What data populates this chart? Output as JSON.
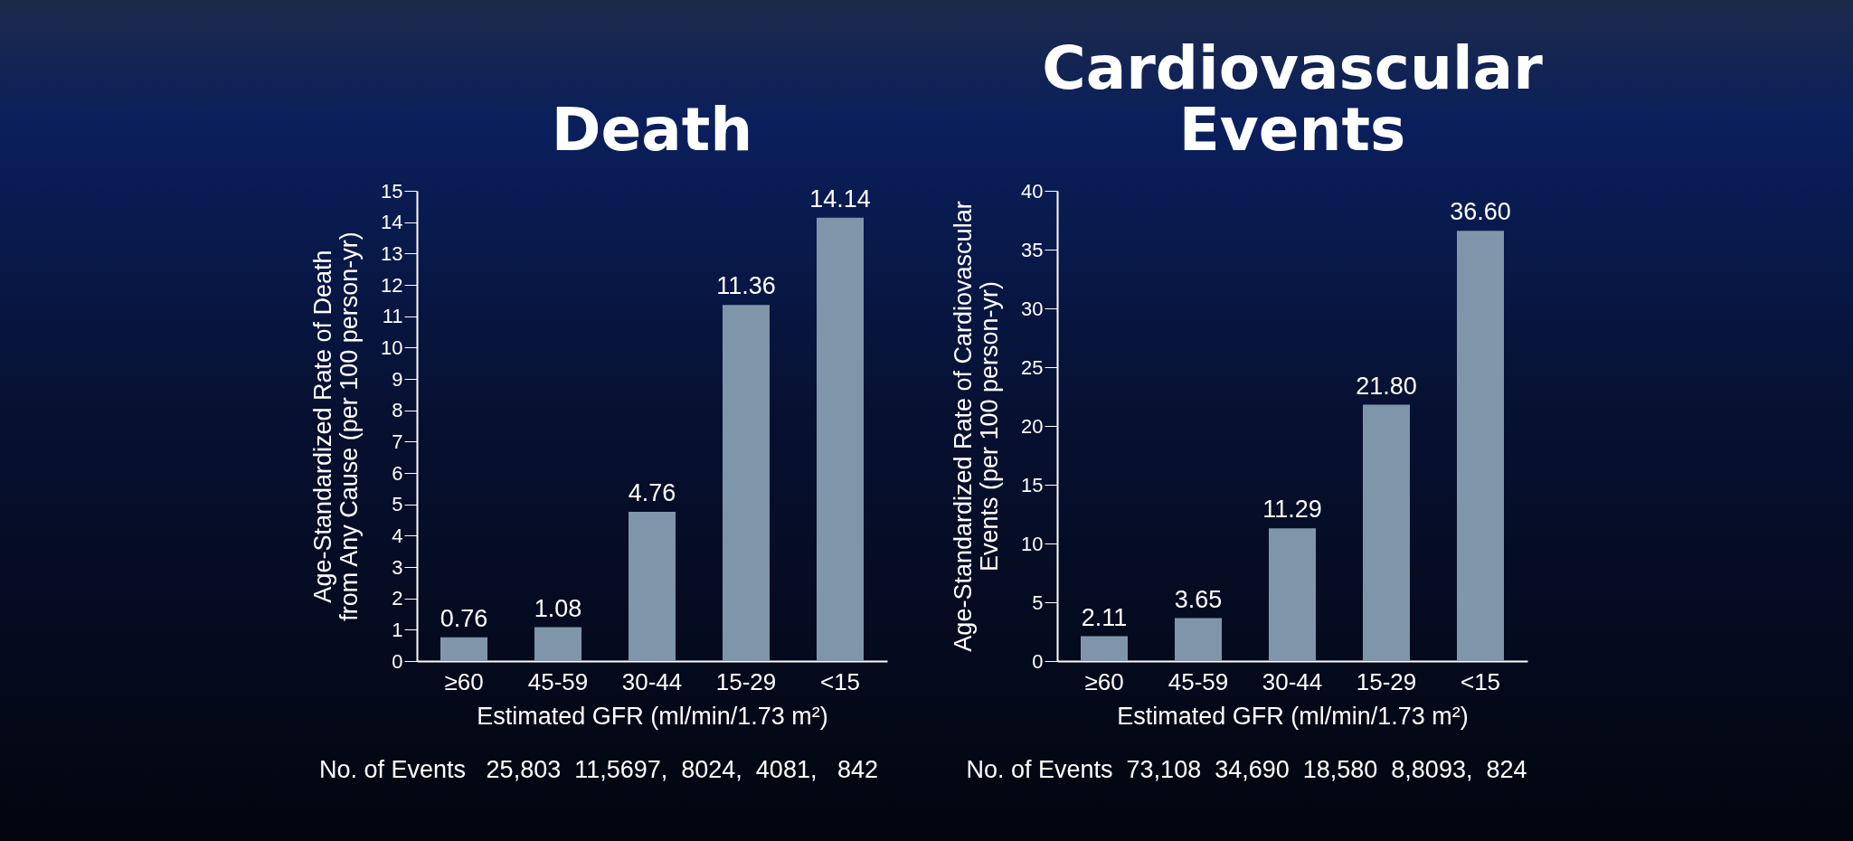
{
  "chart_data": [
    {
      "type": "bar",
      "title": "Death",
      "xlabel": "Estimated GFR (ml/min/1.73 m²)",
      "ylabel": "Age-Standardized Rate of Death from Any Cause (per 100 person-yr)",
      "categories": [
        "≥60",
        "45-59",
        "30-44",
        "15-29",
        "<15"
      ],
      "values": [
        0.76,
        1.08,
        4.76,
        11.36,
        14.14
      ],
      "value_labels": [
        "0.76",
        "1.08",
        "4.76",
        "11.36",
        "14.14"
      ],
      "color": "#7f96aa",
      "ylim": [
        0,
        15
      ],
      "yticks": [
        0,
        1,
        2,
        3,
        4,
        5,
        6,
        7,
        8,
        9,
        10,
        11,
        12,
        13,
        14,
        15
      ],
      "grid": false,
      "annotations": [
        "No. of Events   25,803  11,5697,  8024,  4081,   842"
      ]
    },
    {
      "type": "bar",
      "title": "Cardiovascular Events",
      "xlabel": "Estimated GFR (ml/min/1.73 m²)",
      "ylabel": "Age-Standardized Rate of Cardiovascular Events (per 100 person-yr)",
      "categories": [
        "≥60",
        "45-59",
        "30-44",
        "15-29",
        "<15"
      ],
      "values": [
        2.11,
        3.65,
        11.29,
        21.8,
        36.6
      ],
      "value_labels": [
        "2.11",
        "3.65",
        "11.29",
        "21.80",
        "36.60"
      ],
      "color": "#7f96aa",
      "ylim": [
        0,
        40
      ],
      "yticks": [
        0,
        5,
        10,
        15,
        20,
        25,
        30,
        35,
        40
      ],
      "grid": false,
      "annotations": [
        "No. of Events  73,108  34,690  18,580  8,8093,  824"
      ]
    }
  ]
}
